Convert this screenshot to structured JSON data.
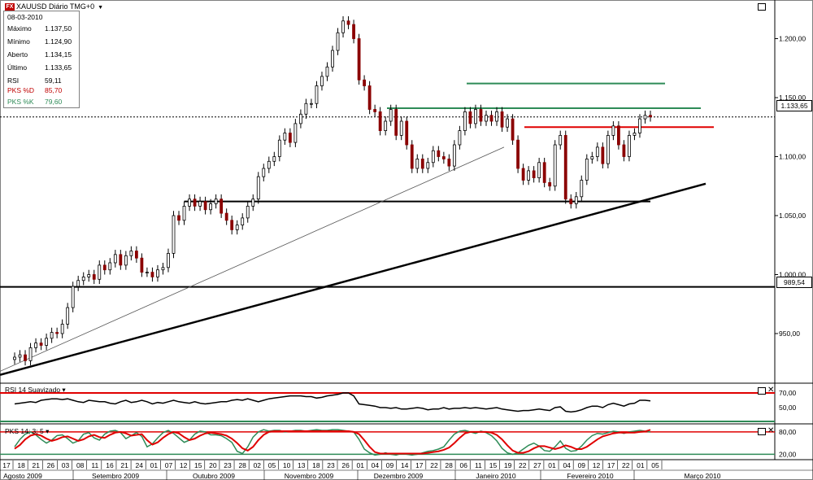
{
  "window": {
    "title": "XAUUSD Diário TMG+0",
    "logo_text": "FX"
  },
  "info_panel": {
    "date": "08-03-2010",
    "rows": [
      {
        "label": "Máximo",
        "value": "1.137,50",
        "color": "#000000"
      },
      {
        "label": "Mínimo",
        "value": "1.124,90",
        "color": "#000000"
      },
      {
        "label": "Aberto",
        "value": "1.134,15",
        "color": "#000000"
      },
      {
        "label": "Último",
        "value": "1.133,65",
        "color": "#000000"
      },
      {
        "label": "RSI",
        "value": "59,11",
        "color": "#000000"
      },
      {
        "label": "PKS %D",
        "value": "85,70",
        "color": "#c00000"
      },
      {
        "label": "PKS %K",
        "value": "79,60",
        "color": "#2e8b57"
      }
    ]
  },
  "price_markers": {
    "last": "1.133,65",
    "support": "989,54"
  },
  "panels": {
    "rsi_label": "RSI 14 Suavizado",
    "pks_label": "PKS 14; 3; 5"
  },
  "colors": {
    "up_candle": "#000000",
    "down_candle": "#8b0000",
    "red_line": "#e00000",
    "green_line": "#2e8b57"
  },
  "chart_data": [
    {
      "type": "candlestick",
      "name": "XAUUSD",
      "x_range": [
        "2009-08-17",
        "2010-03-08"
      ],
      "ylim": [
        910,
        1230
      ],
      "y_ticks": [
        "950,00",
        "1.000,00",
        "1.050,00",
        "1.100,00",
        "1.150,00",
        "1.200,00"
      ],
      "y_tick_values": [
        950,
        1000,
        1050,
        1100,
        1150,
        1200
      ],
      "closes": [
        930,
        932,
        927,
        938,
        942,
        940,
        946,
        951,
        950,
        958,
        972,
        990,
        995,
        998,
        1000,
        996,
        1008,
        1004,
        1010,
        1017,
        1008,
        1016,
        1020,
        1014,
        1002,
        1002,
        998,
        1004,
        1006,
        1018,
        1050,
        1046,
        1058,
        1064,
        1058,
        1062,
        1055,
        1060,
        1064,
        1052,
        1046,
        1038,
        1042,
        1048,
        1058,
        1064,
        1083,
        1090,
        1096,
        1100,
        1114,
        1120,
        1112,
        1128,
        1136,
        1145,
        1145,
        1160,
        1168,
        1176,
        1190,
        1205,
        1215,
        1212,
        1200,
        1165,
        1160,
        1140,
        1138,
        1122,
        1130,
        1140,
        1118,
        1130,
        1110,
        1090,
        1098,
        1090,
        1095,
        1105,
        1100,
        1098,
        1092,
        1110,
        1122,
        1138,
        1128,
        1140,
        1130,
        1135,
        1130,
        1138,
        1125,
        1132,
        1114,
        1090,
        1080,
        1088,
        1082,
        1095,
        1078,
        1075,
        1110,
        1118,
        1064,
        1060,
        1066,
        1080,
        1098,
        1100,
        1108,
        1094,
        1118,
        1126,
        1110,
        1100,
        1118,
        1120,
        1132,
        1135,
        1133.65
      ],
      "x_labels": [
        "17",
        "18",
        "21",
        "26",
        "03",
        "08",
        "11",
        "16",
        "21",
        "24",
        "01",
        "07",
        "12",
        "15",
        "20",
        "23",
        "28",
        "02",
        "05",
        "10",
        "13",
        "18",
        "23",
        "26",
        "01",
        "04",
        "09",
        "14",
        "17",
        "22",
        "28",
        "06",
        "11",
        "15",
        "19",
        "22",
        "27",
        "01",
        "04",
        "09",
        "12",
        "17",
        "22",
        "01",
        "05"
      ],
      "months": [
        "Agosto 2009",
        "Setembro 2009",
        "Outubro 2009",
        "Novembro 2009",
        "Dezembro 2009",
        "Janeiro 2010",
        "Fevereiro 2010",
        "Março 2010"
      ],
      "annotations": [
        "horizontal support 1.062",
        "horizontal support 989,54",
        "rising trendline",
        "resistance 1.141 (green)",
        "resistance 1.162 (green)",
        "resistance 1.125 (red)"
      ]
    },
    {
      "type": "line",
      "name": "RSI 14 Suavizado",
      "ylim": [
        30,
        80
      ],
      "y_ticks": [
        "50,00",
        "70,00"
      ],
      "y_tick_values": [
        50,
        70
      ],
      "values": [
        55,
        56,
        57,
        58,
        57,
        60,
        61,
        62,
        62,
        61,
        62,
        60,
        58,
        57,
        60,
        59,
        58,
        58,
        56,
        55,
        58,
        60,
        57,
        58,
        60,
        58,
        55,
        57,
        56,
        58,
        60,
        58,
        57,
        56,
        58,
        56,
        55,
        56,
        57,
        58,
        58,
        60,
        61,
        60,
        62,
        60,
        58,
        60,
        62,
        63,
        64,
        65,
        66,
        66,
        66,
        65,
        65,
        63,
        64,
        66,
        67,
        68,
        70,
        70,
        66,
        55,
        54,
        53,
        52,
        50,
        50,
        49,
        50,
        48,
        48,
        49,
        50,
        49,
        47,
        48,
        48,
        50,
        48,
        49,
        49,
        50,
        49,
        50,
        49,
        48,
        49,
        50,
        48,
        47,
        46,
        45,
        46,
        46,
        47,
        48,
        47,
        46,
        50,
        51,
        45,
        44,
        45,
        47,
        50,
        52,
        52,
        50,
        54,
        56,
        54,
        52,
        55,
        56,
        60,
        60,
        59.11
      ]
    },
    {
      "type": "line",
      "name": "PKS 14; 3; 5",
      "ylim": [
        10,
        95
      ],
      "y_ticks": [
        "20,00",
        "80,00"
      ],
      "y_tick_values": [
        20,
        80
      ],
      "series": [
        {
          "name": "PKS %K",
          "values": [
            40,
            60,
            74,
            80,
            72,
            60,
            50,
            58,
            70,
            72,
            62,
            50,
            56,
            74,
            78,
            64,
            58,
            74,
            82,
            84,
            78,
            62,
            70,
            78,
            68,
            40,
            48,
            64,
            78,
            84,
            76,
            64,
            52,
            58,
            74,
            82,
            80,
            72,
            72,
            70,
            62,
            52,
            28,
            22,
            40,
            66,
            80,
            86,
            82,
            84,
            84,
            80,
            82,
            84,
            84,
            82,
            84,
            86,
            84,
            84,
            86,
            86,
            84,
            82,
            80,
            60,
            34,
            24,
            18,
            20,
            24,
            20,
            18,
            22,
            20,
            18,
            20,
            24,
            28,
            30,
            34,
            40,
            58,
            74,
            82,
            84,
            80,
            76,
            82,
            78,
            70,
            56,
            36,
            24,
            20,
            24,
            34,
            44,
            50,
            42,
            30,
            28,
            40,
            56,
            36,
            28,
            30,
            42,
            58,
            70,
            76,
            74,
            78,
            82,
            80,
            76,
            80,
            82,
            84,
            82,
            79.6
          ]
        },
        {
          "name": "PKS %D",
          "values": [
            35,
            45,
            60,
            70,
            74,
            70,
            62,
            56,
            60,
            66,
            68,
            62,
            56,
            60,
            68,
            72,
            66,
            64,
            72,
            78,
            80,
            76,
            70,
            72,
            74,
            58,
            46,
            52,
            64,
            74,
            80,
            76,
            66,
            58,
            62,
            70,
            76,
            78,
            76,
            74,
            70,
            62,
            50,
            36,
            30,
            40,
            58,
            72,
            80,
            82,
            82,
            82,
            82,
            82,
            82,
            82,
            82,
            82,
            82,
            82,
            82,
            82,
            82,
            82,
            80,
            74,
            58,
            40,
            26,
            22,
            22,
            22,
            22,
            22,
            22,
            22,
            22,
            22,
            24,
            26,
            28,
            32,
            38,
            50,
            64,
            76,
            80,
            80,
            80,
            80,
            78,
            72,
            60,
            44,
            30,
            24,
            24,
            28,
            36,
            42,
            42,
            38,
            34,
            38,
            44,
            40,
            34,
            34,
            40,
            50,
            60,
            68,
            72,
            76,
            78,
            78,
            78,
            78,
            80,
            81,
            85.7
          ]
        }
      ]
    }
  ]
}
